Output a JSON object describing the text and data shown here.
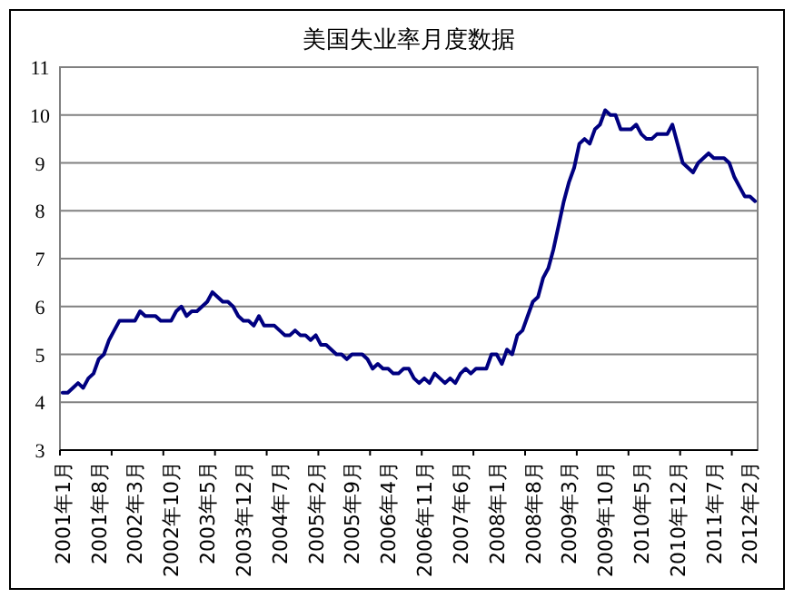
{
  "chart_data": {
    "type": "line",
    "title": "美国失业率月度数据",
    "categories": [
      "2001年1月",
      null,
      null,
      null,
      null,
      null,
      null,
      "2001年8月",
      null,
      null,
      null,
      null,
      null,
      null,
      "2002年3月",
      null,
      null,
      null,
      null,
      null,
      null,
      "2002年10月",
      null,
      null,
      null,
      null,
      null,
      null,
      "2003年5月",
      null,
      null,
      null,
      null,
      null,
      null,
      "2003年12月",
      null,
      null,
      null,
      null,
      null,
      null,
      "2004年7月",
      null,
      null,
      null,
      null,
      null,
      null,
      "2005年2月",
      null,
      null,
      null,
      null,
      null,
      null,
      "2005年9月",
      null,
      null,
      null,
      null,
      null,
      null,
      "2006年4月",
      null,
      null,
      null,
      null,
      null,
      null,
      "2006年11月",
      null,
      null,
      null,
      null,
      null,
      null,
      "2007年6月",
      null,
      null,
      null,
      null,
      null,
      null,
      "2008年1月",
      null,
      null,
      null,
      null,
      null,
      null,
      "2008年8月",
      null,
      null,
      null,
      null,
      null,
      null,
      "2009年3月",
      null,
      null,
      null,
      null,
      null,
      null,
      "2009年10月",
      null,
      null,
      null,
      null,
      null,
      null,
      "2010年5月",
      null,
      null,
      null,
      null,
      null,
      null,
      "2010年12月",
      null,
      null,
      null,
      null,
      null,
      null,
      "2011年7月",
      null,
      null,
      null,
      null,
      null,
      null,
      "2012年2月",
      null
    ],
    "series": [
      {
        "color": "#000080",
        "values": [
          4.2,
          4.2,
          4.3,
          4.4,
          4.3,
          4.5,
          4.6,
          4.9,
          5.0,
          5.3,
          5.5,
          5.7,
          5.7,
          5.7,
          5.7,
          5.9,
          5.8,
          5.8,
          5.8,
          5.7,
          5.7,
          5.7,
          5.9,
          6.0,
          5.8,
          5.9,
          5.9,
          6.0,
          6.1,
          6.3,
          6.2,
          6.1,
          6.1,
          6.0,
          5.8,
          5.7,
          5.7,
          5.6,
          5.8,
          5.6,
          5.6,
          5.6,
          5.5,
          5.4,
          5.4,
          5.5,
          5.4,
          5.4,
          5.3,
          5.4,
          5.2,
          5.2,
          5.1,
          5.0,
          5.0,
          4.9,
          5.0,
          5.0,
          5.0,
          4.9,
          4.7,
          4.8,
          4.7,
          4.7,
          4.6,
          4.6,
          4.7,
          4.7,
          4.5,
          4.4,
          4.5,
          4.4,
          4.6,
          4.5,
          4.4,
          4.5,
          4.4,
          4.6,
          4.7,
          4.6,
          4.7,
          4.7,
          4.7,
          5.0,
          5.0,
          4.8,
          5.1,
          5.0,
          5.4,
          5.5,
          5.8,
          6.1,
          6.2,
          6.6,
          6.8,
          7.2,
          7.7,
          8.2,
          8.6,
          8.9,
          9.4,
          9.5,
          9.4,
          9.7,
          9.8,
          10.1,
          10.0,
          10.0,
          9.7,
          9.7,
          9.7,
          9.8,
          9.6,
          9.5,
          9.5,
          9.6,
          9.6,
          9.6,
          9.8,
          9.4,
          9.0,
          8.9,
          8.8,
          9.0,
          9.1,
          9.2,
          9.1,
          9.1,
          9.1,
          9.0,
          8.7,
          8.5,
          8.3,
          8.3,
          8.2
        ]
      }
    ],
    "ylim": [
      3,
      11
    ],
    "yticks": [
      3,
      4,
      5,
      6,
      7,
      8,
      9,
      10,
      11
    ],
    "grid": "y",
    "marker": "none",
    "line_style": "solid"
  }
}
